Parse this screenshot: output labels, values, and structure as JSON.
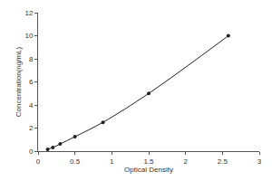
{
  "chart_data": {
    "type": "scatter",
    "x_label": "Optical Density",
    "y_label": "Concentration(ng/mL)",
    "x": [
      0.13,
      0.2,
      0.3,
      0.5,
      0.88,
      1.5,
      2.58
    ],
    "values": [
      0.156,
      0.312,
      0.625,
      1.25,
      2.5,
      5,
      10
    ],
    "color": "#222222",
    "marker": "circle",
    "line_style": "solid",
    "xlim": [
      0,
      3
    ],
    "xticks": [
      0,
      0.5,
      1,
      1.5,
      2,
      2.5,
      3
    ],
    "ylim": [
      0,
      12
    ],
    "yticks": [
      0,
      2,
      4,
      6,
      8,
      10,
      12
    ],
    "grid": false
  }
}
